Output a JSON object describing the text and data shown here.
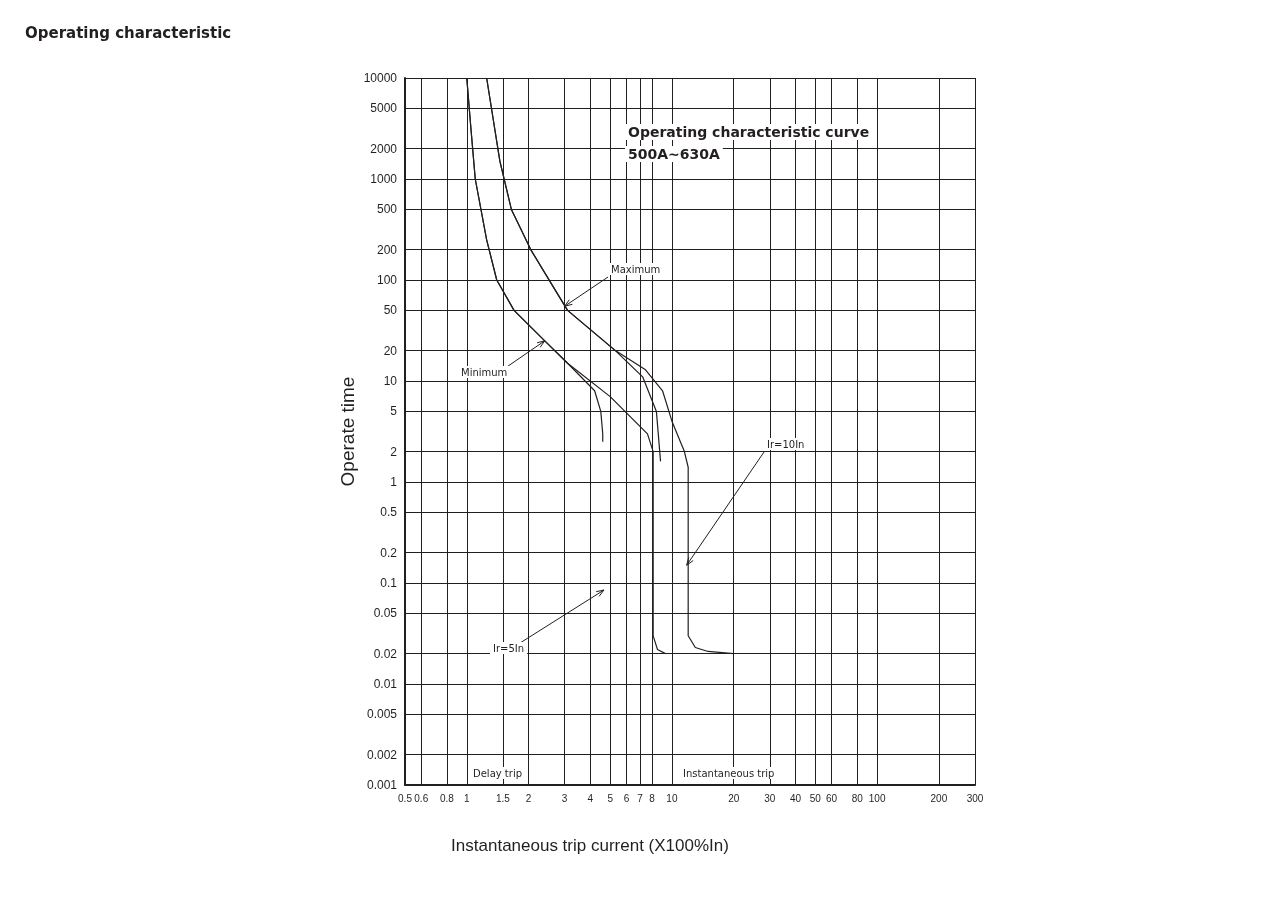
{
  "chart_data": {
    "type": "line",
    "title": "Operating characteristic",
    "xlabel": "Instantaneous trip current (X100%In)",
    "ylabel": "Operate time",
    "annotations": [
      "Operating characteristic curve",
      "500A~630A",
      {
        "text": "Maximum",
        "x": 3,
        "y": 55
      },
      {
        "text": "Minimum",
        "x": 2.4,
        "y": 25
      },
      {
        "text": "Ir=10In",
        "x": 11.8,
        "y": 0.15
      },
      "Ir=5In",
      "Delay trip",
      "Instantaneous trip"
    ],
    "log": "xy",
    "grid": true,
    "marker": "none",
    "line_style": "solid",
    "xlim": [
      0.5,
      300
    ],
    "xticks": [
      0.5,
      0.6,
      0.8,
      1,
      1.5,
      2,
      3,
      4,
      5,
      6,
      7,
      8,
      10,
      20,
      30,
      40,
      50,
      60,
      80,
      100,
      200,
      300
    ],
    "ylim": [
      0.001,
      10000
    ],
    "yticks": [
      0.001,
      0.002,
      0.005,
      0.01,
      0.02,
      0.05,
      0.1,
      0.2,
      0.5,
      1,
      2,
      5,
      10,
      20,
      50,
      100,
      200,
      500,
      1000,
      2000,
      5000,
      10000
    ],
    "series": [
      {
        "color": "#231f20",
        "x": [
          1.0,
          1.05,
          1.1,
          1.25,
          1.4,
          1.7,
          2.4,
          3.1,
          4.2,
          4.5,
          4.6,
          4.6
        ],
        "values": [
          10000,
          3000,
          1000,
          250,
          100,
          50,
          25,
          15,
          8,
          5,
          3,
          2.5
        ]
      },
      {
        "color": "#231f20",
        "x": [
          1.0,
          1.05,
          1.1,
          1.25,
          1.4,
          1.7,
          2.4,
          3.1,
          5,
          7.6,
          8.1,
          8.1,
          8.1,
          8.5,
          9.3
        ],
        "values": [
          10000,
          3000,
          1000,
          250,
          100,
          50,
          25,
          15,
          7,
          3,
          2,
          1,
          0.03,
          0.022,
          0.02
        ]
      },
      {
        "color": "#231f20",
        "x": [
          1.25,
          1.45,
          1.65,
          2.05,
          2.6,
          3.1,
          5.3,
          7.2,
          8.4,
          8.8
        ],
        "values": [
          10000,
          1500,
          500,
          200,
          90,
          50,
          20,
          11,
          5,
          1.6
        ]
      },
      {
        "color": "#231f20",
        "x": [
          1.25,
          1.45,
          1.65,
          2.05,
          2.6,
          3.1,
          5.3,
          7.4,
          9,
          10,
          11.5,
          12,
          12,
          13,
          15,
          20
        ],
        "values": [
          10000,
          1500,
          500,
          200,
          90,
          50,
          20,
          13,
          8,
          4,
          2,
          1.4,
          0.03,
          0.023,
          0.021,
          0.02
        ]
      }
    ]
  }
}
